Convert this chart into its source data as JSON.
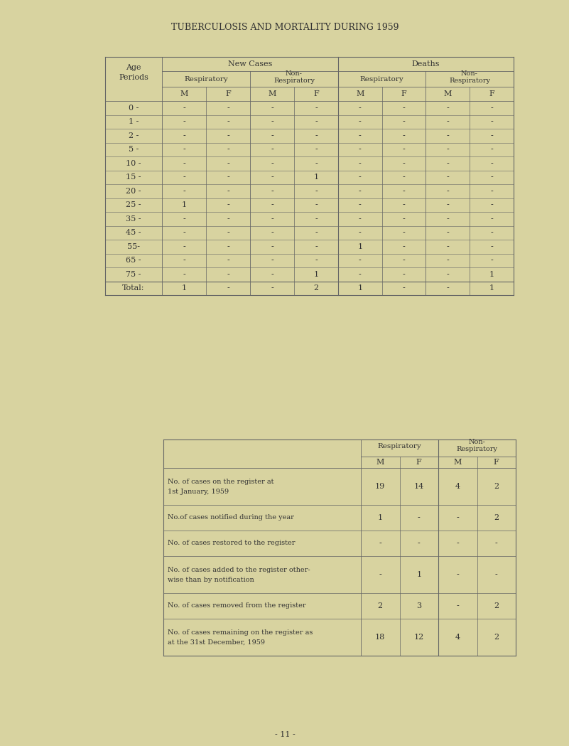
{
  "title": "TUBERCULOSIS AND MORTALITY DURING 1959",
  "bg_color": "#d8d3a0",
  "table1": {
    "age_periods": [
      "0 -",
      "1 -",
      "2 -",
      "5 -",
      "10 -",
      "15 -",
      "20 -",
      "25 -",
      "35 -",
      "45 -",
      "55-",
      "65 -",
      "75 -",
      "Total:"
    ],
    "data": {
      "0": [
        "-",
        "-",
        "-",
        "-",
        "-",
        "-",
        "-",
        "-"
      ],
      "1": [
        "-",
        "-",
        "-",
        "-",
        "-",
        "-",
        "-",
        "-"
      ],
      "2": [
        "-",
        "-",
        "-",
        "-",
        "-",
        "-",
        "-",
        "-"
      ],
      "5": [
        "-",
        "-",
        "-",
        "-",
        "-",
        "-",
        "-",
        "-"
      ],
      "10": [
        "-",
        "-",
        "-",
        "-",
        "-",
        "-",
        "-",
        "-"
      ],
      "15": [
        "-",
        "-",
        "-",
        "1",
        "-",
        "-",
        "-",
        "-"
      ],
      "20": [
        "-",
        "-",
        "-",
        "-",
        "-",
        "-",
        "-",
        "-"
      ],
      "25": [
        "1",
        "-",
        "-",
        "-",
        "-",
        "-",
        "-",
        "-"
      ],
      "35": [
        "-",
        "-",
        "-",
        "-",
        "-",
        "-",
        "-",
        "-"
      ],
      "45": [
        "-",
        "-",
        "-",
        "-",
        "-",
        "-",
        "-",
        "-"
      ],
      "55": [
        "-",
        "-",
        "-",
        "-",
        "1",
        "-",
        "-",
        "-"
      ],
      "65": [
        "-",
        "-",
        "-",
        "-",
        "-",
        "-",
        "-",
        "-"
      ],
      "75": [
        "-",
        "-",
        "-",
        "1",
        "-",
        "-",
        "-",
        "1"
      ],
      "Total": [
        "1",
        "-",
        "-",
        "2",
        "1",
        "-",
        "-",
        "1"
      ]
    }
  },
  "table2": {
    "row_labels": [
      [
        "No. of cases on the register at",
        "1st January, 1959"
      ],
      [
        "No.of cases notified during the year"
      ],
      [
        "No. of cases restored to the register"
      ],
      [
        "No. of cases added to the register other-",
        "wise than by notification"
      ],
      [
        "No. of cases removed from the register"
      ],
      [
        "No. of cases remaining on the register as",
        "at the 31st December, 1959"
      ]
    ],
    "data": [
      [
        "19",
        "14",
        "4",
        "2"
      ],
      [
        "1",
        "-",
        "-",
        "2"
      ],
      [
        "-",
        "-",
        "-",
        "-"
      ],
      [
        "-",
        "1",
        "-",
        "-"
      ],
      [
        "2",
        "3",
        "-",
        "2"
      ],
      [
        "18",
        "12",
        "4",
        "2"
      ]
    ]
  },
  "page_number": "- 11 -"
}
